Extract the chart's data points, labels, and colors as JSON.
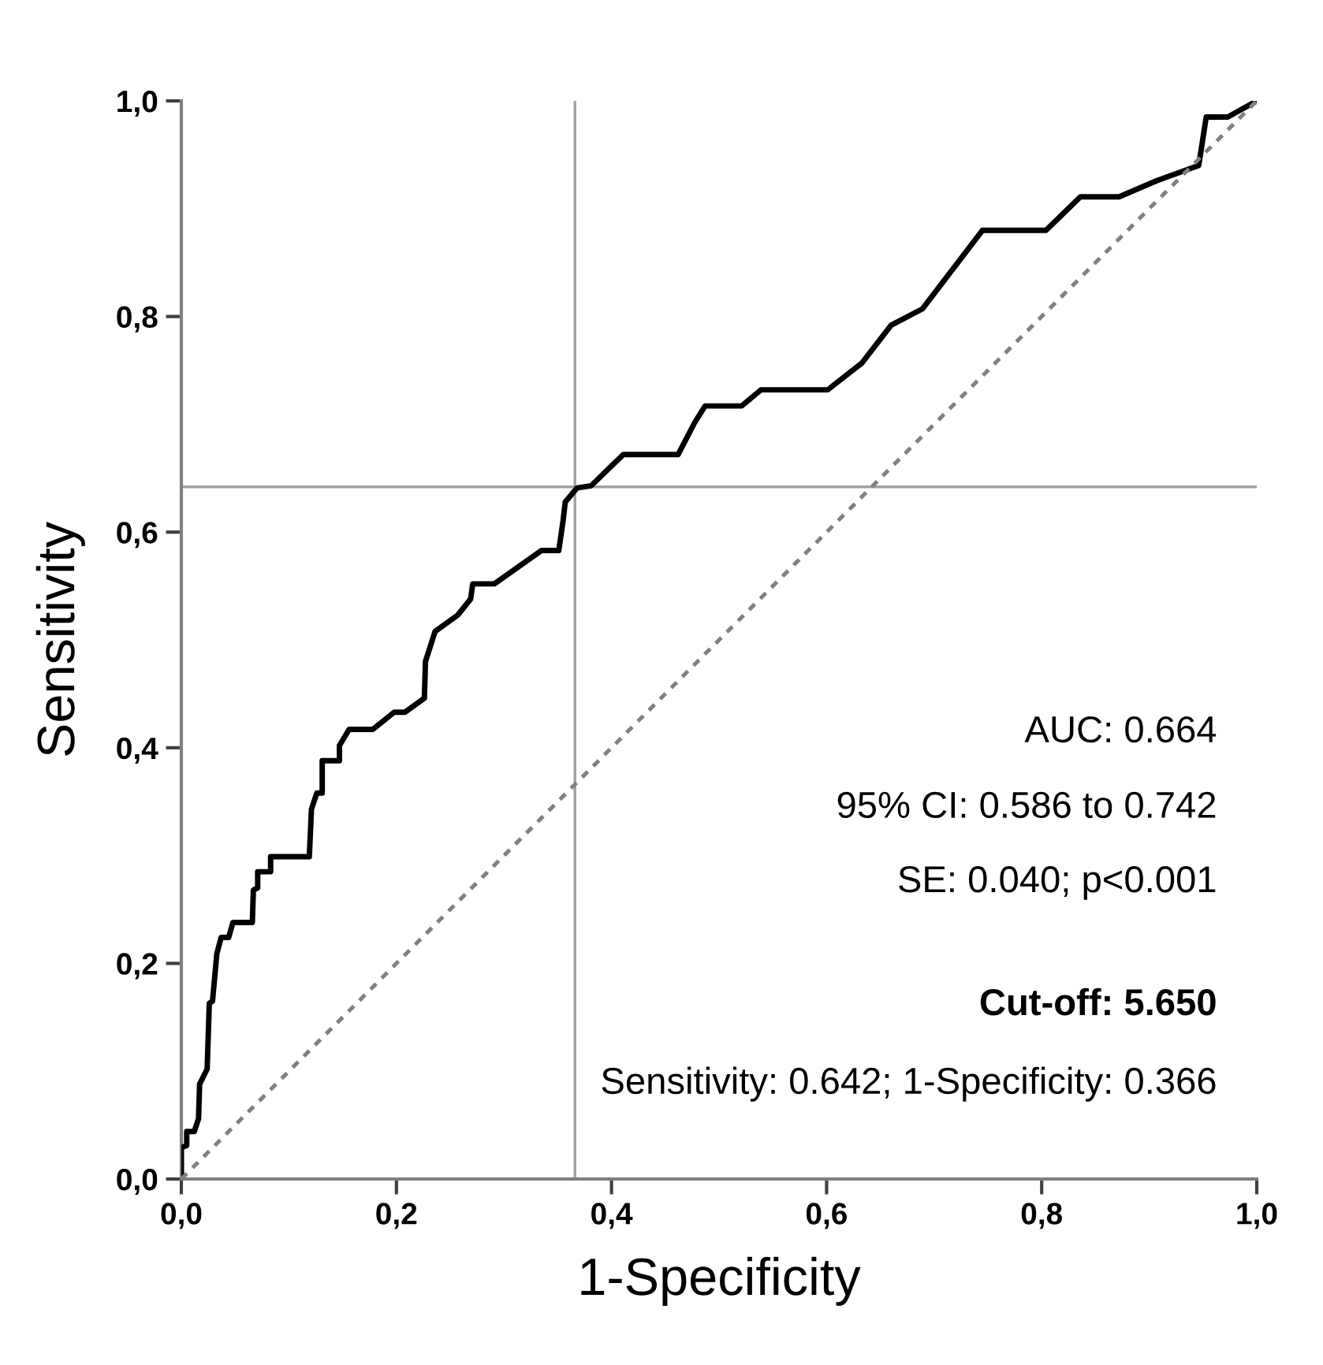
{
  "chart_data": {
    "type": "line",
    "xlabel": "1-Specificity",
    "ylabel": "Sensitivity",
    "xlim": [
      0,
      1
    ],
    "ylim": [
      0,
      1
    ],
    "xticks": [
      {
        "value": 0,
        "label": "0,0"
      },
      {
        "value": 0.2,
        "label": "0,2"
      },
      {
        "value": 0.4,
        "label": "0,4"
      },
      {
        "value": 0.6,
        "label": "0,6"
      },
      {
        "value": 0.8,
        "label": "0,8"
      },
      {
        "value": 1,
        "label": "1,0"
      }
    ],
    "yticks": [
      {
        "value": 0,
        "label": "0,0"
      },
      {
        "value": 0.2,
        "label": "0,2"
      },
      {
        "value": 0.4,
        "label": "0,4"
      },
      {
        "value": 0.6,
        "label": "0,6"
      },
      {
        "value": 0.8,
        "label": "0,8"
      },
      {
        "value": 1,
        "label": "1,0"
      }
    ],
    "grid": false,
    "legend": false,
    "marker": "none",
    "series": [
      {
        "color": "#000000",
        "line_style": "solid",
        "x": [
          0,
          0,
          0.005,
          0.005,
          0.012,
          0.016,
          0.017,
          0.024,
          0.026,
          0.029,
          0.033,
          0.037,
          0.044,
          0.048,
          0.066,
          0.067,
          0.071,
          0.071,
          0.083,
          0.083,
          0.119,
          0.121,
          0.126,
          0.131,
          0.131,
          0.147,
          0.147,
          0.156,
          0.178,
          0.198,
          0.208,
          0.226,
          0.227,
          0.236,
          0.257,
          0.269,
          0.271,
          0.291,
          0.335,
          0.351,
          0.355,
          0.357,
          0.368,
          0.381,
          0.411,
          0.462,
          0.477,
          0.487,
          0.521,
          0.539,
          0.601,
          0.633,
          0.66,
          0.689,
          0.745,
          0.804,
          0.836,
          0.872,
          0.907,
          0.946,
          0.953,
          0.973,
          1
        ],
        "values": [
          0,
          0.029,
          0.031,
          0.044,
          0.044,
          0.056,
          0.088,
          0.102,
          0.163,
          0.165,
          0.209,
          0.224,
          0.224,
          0.238,
          0.238,
          0.268,
          0.27,
          0.285,
          0.285,
          0.299,
          0.299,
          0.343,
          0.358,
          0.358,
          0.388,
          0.388,
          0.402,
          0.417,
          0.417,
          0.433,
          0.433,
          0.446,
          0.48,
          0.508,
          0.523,
          0.538,
          0.552,
          0.552,
          0.583,
          0.583,
          0.611,
          0.628,
          0.641,
          0.643,
          0.672,
          0.672,
          0.701,
          0.717,
          0.717,
          0.732,
          0.732,
          0.757,
          0.792,
          0.807,
          0.88,
          0.88,
          0.911,
          0.911,
          0.926,
          0.94,
          0.985,
          0.985,
          1
        ]
      },
      {
        "color": "#808080",
        "line_style": "dotted",
        "x": [
          0,
          1
        ],
        "values": [
          0,
          1
        ]
      }
    ],
    "ref_lines": [
      {
        "axis": "x",
        "value": 0.366,
        "color": "#a0a0a0"
      },
      {
        "axis": "y",
        "value": 0.642,
        "color": "#a0a0a0"
      }
    ],
    "annotations": [
      "AUC: 0.664",
      "95% CI: 0.586 to 0.742",
      "SE: 0.040; p<0.001",
      "Cut-off: 5.650",
      "Sensitivity: 0.642; 1-Specificity: 0.366"
    ]
  }
}
